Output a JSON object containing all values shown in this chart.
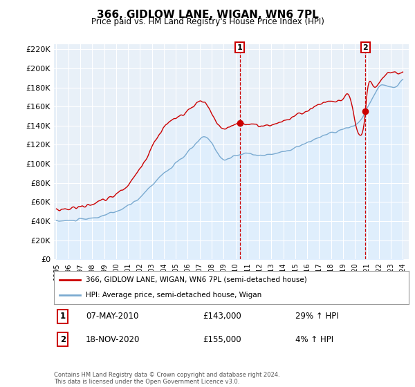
{
  "title": "366, GIDLOW LANE, WIGAN, WN6 7PL",
  "subtitle": "Price paid vs. HM Land Registry's House Price Index (HPI)",
  "legend_line1": "366, GIDLOW LANE, WIGAN, WN6 7PL (semi-detached house)",
  "legend_line2": "HPI: Average price, semi-detached house, Wigan",
  "annotation1_label": "1",
  "annotation1_date": "07-MAY-2010",
  "annotation1_price": "£143,000",
  "annotation1_hpi": "29% ↑ HPI",
  "annotation1_year": 2010.35,
  "annotation1_value": 143000,
  "annotation2_label": "2",
  "annotation2_date": "18-NOV-2020",
  "annotation2_price": "£155,000",
  "annotation2_hpi": "4% ↑ HPI",
  "annotation2_year": 2020.88,
  "annotation2_value": 155000,
  "footer": "Contains HM Land Registry data © Crown copyright and database right 2024.\nThis data is licensed under the Open Government Licence v3.0.",
  "ylim": [
    0,
    225000
  ],
  "yticks": [
    0,
    20000,
    40000,
    60000,
    80000,
    100000,
    120000,
    140000,
    160000,
    180000,
    200000,
    220000
  ],
  "line_color_property": "#cc0000",
  "line_color_hpi": "#7aaad0",
  "fill_color": "#ddeeff",
  "background_color": "#ffffff",
  "grid_color": "#cccccc"
}
